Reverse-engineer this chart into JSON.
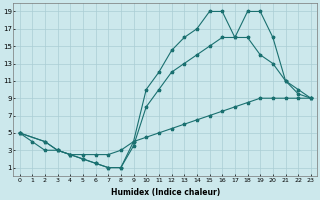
{
  "xlabel": "Humidex (Indice chaleur)",
  "bg_color": "#cce8ec",
  "grid_color": "#aacdd4",
  "line_color": "#1a7070",
  "xlim": [
    -0.5,
    23.5
  ],
  "ylim": [
    0,
    20
  ],
  "xticks": [
    0,
    1,
    2,
    3,
    4,
    5,
    6,
    7,
    8,
    9,
    10,
    11,
    12,
    13,
    14,
    15,
    16,
    17,
    18,
    19,
    20,
    21,
    22,
    23
  ],
  "yticks": [
    1,
    3,
    5,
    7,
    9,
    11,
    13,
    15,
    17,
    19
  ],
  "line1_x": [
    0,
    1,
    2,
    3,
    4,
    5,
    6,
    7,
    8,
    9,
    10,
    11,
    12,
    13,
    14,
    15,
    16,
    17,
    18,
    19,
    20,
    21,
    22,
    23
  ],
  "line1_y": [
    5,
    4,
    3,
    3,
    2.5,
    2.5,
    2.5,
    2.5,
    3,
    4,
    4.5,
    5,
    5.5,
    6,
    6.5,
    7,
    7.5,
    8,
    8.5,
    9,
    9,
    9,
    9,
    9
  ],
  "line2_x": [
    0,
    2,
    3,
    4,
    5,
    6,
    7,
    8,
    9,
    10,
    11,
    12,
    13,
    14,
    15,
    16,
    17,
    18,
    19,
    20,
    21,
    22,
    23
  ],
  "line2_y": [
    5,
    4,
    3,
    2.5,
    2,
    1.5,
    1,
    1,
    4,
    10,
    12,
    14.5,
    16,
    17,
    19,
    19,
    16,
    19,
    19,
    16,
    11,
    9.5,
    9
  ],
  "line3_x": [
    0,
    2,
    3,
    4,
    5,
    6,
    7,
    8,
    9,
    10,
    11,
    12,
    13,
    14,
    15,
    16,
    17,
    18,
    19,
    20,
    21,
    22,
    23
  ],
  "line3_y": [
    5,
    4,
    3,
    2.5,
    2,
    1.5,
    1,
    1,
    3.5,
    8,
    10,
    12,
    13,
    14,
    15,
    16,
    16,
    16,
    14,
    13,
    11,
    10,
    9
  ]
}
